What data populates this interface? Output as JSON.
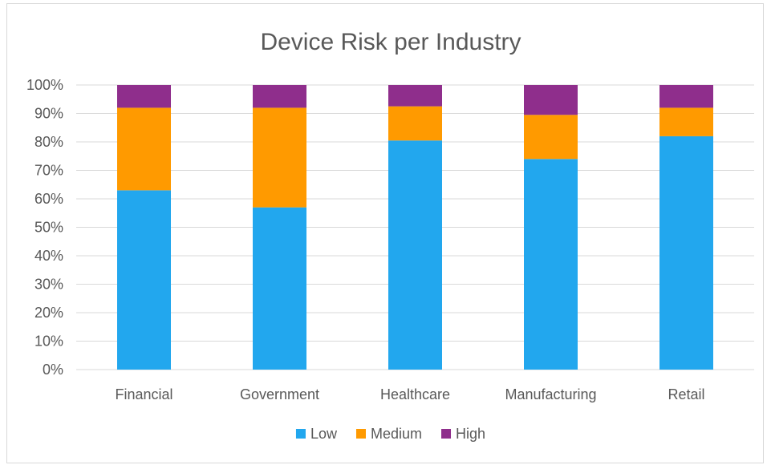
{
  "chart_data": {
    "type": "bar",
    "stacked": true,
    "title": "Device Risk per Industry",
    "xlabel": "",
    "ylabel": "",
    "categories": [
      "Financial",
      "Government",
      "Healthcare",
      "Manufacturing",
      "Retail"
    ],
    "series": [
      {
        "name": "Low",
        "color": "#22a7ee",
        "values": [
          63,
          57,
          80.5,
          74,
          82
        ]
      },
      {
        "name": "Medium",
        "color": "#ff9a00",
        "values": [
          29,
          35,
          12,
          15.5,
          10
        ]
      },
      {
        "name": "High",
        "color": "#8f2e8c",
        "values": [
          8,
          8,
          7.5,
          10.5,
          8
        ]
      }
    ],
    "ylim": [
      0,
      100
    ],
    "yticks": [
      "0%",
      "10%",
      "20%",
      "30%",
      "40%",
      "50%",
      "60%",
      "70%",
      "80%",
      "90%",
      "100%"
    ],
    "grid": true,
    "legend_position": "bottom",
    "gridline_color": "#d9d9d9"
  }
}
